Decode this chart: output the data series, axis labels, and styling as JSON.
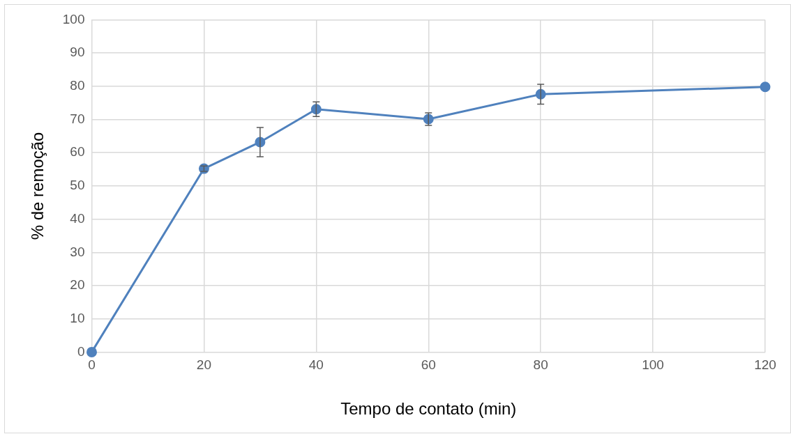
{
  "chart_data": {
    "type": "line",
    "xlabel": "Tempo de contato (min)",
    "ylabel": "% de remoção",
    "x": [
      0,
      20,
      30,
      40,
      60,
      80,
      120
    ],
    "series": [
      {
        "color": "#4f81bd",
        "values": [
          0,
          55.2,
          63.2,
          73.1,
          70.1,
          77.6,
          79.8
        ],
        "errors": [
          null,
          0.8,
          4.4,
          2.2,
          1.9,
          3,
          null
        ]
      }
    ],
    "xlim": [
      0,
      120
    ],
    "xticks": [
      0,
      20,
      40,
      60,
      80,
      100,
      120
    ],
    "ylim": [
      0,
      100
    ],
    "yticks": [
      0,
      10,
      20,
      30,
      40,
      50,
      60,
      70,
      80,
      90,
      100
    ],
    "grid": true,
    "legend": false,
    "marker": "circle",
    "line_style": "solid"
  }
}
